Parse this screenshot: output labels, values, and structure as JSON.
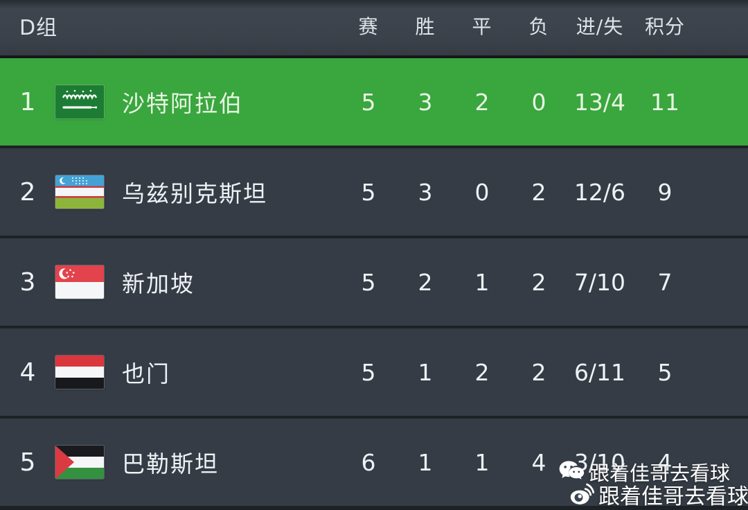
{
  "standings": {
    "group_label": "D组",
    "columns": [
      "赛",
      "胜",
      "平",
      "负",
      "进/失",
      "积分"
    ],
    "rows": [
      {
        "rank": "1",
        "team": "沙特阿拉伯",
        "flag": "saudi-arabia",
        "played": "5",
        "won": "3",
        "drawn": "2",
        "lost": "0",
        "goals_for_against": "13/4",
        "points": "11",
        "highlighted": true
      },
      {
        "rank": "2",
        "team": "乌兹别克斯坦",
        "flag": "uzbekistan",
        "played": "5",
        "won": "3",
        "drawn": "0",
        "lost": "2",
        "goals_for_against": "12/6",
        "points": "9",
        "highlighted": false
      },
      {
        "rank": "3",
        "team": "新加坡",
        "flag": "singapore",
        "played": "5",
        "won": "2",
        "drawn": "1",
        "lost": "2",
        "goals_for_against": "7/10",
        "points": "7",
        "highlighted": false
      },
      {
        "rank": "4",
        "team": "也门",
        "flag": "yemen",
        "played": "5",
        "won": "1",
        "drawn": "2",
        "lost": "2",
        "goals_for_against": "6/11",
        "points": "5",
        "highlighted": false
      },
      {
        "rank": "5",
        "team": "巴勒斯坦",
        "flag": "palestine",
        "played": "6",
        "won": "1",
        "drawn": "1",
        "lost": "4",
        "goals_for_against": "3/10",
        "points": "4",
        "highlighted": false
      }
    ]
  },
  "watermark": {
    "line1": {
      "icon": "wechat-icon",
      "text": "跟着佳哥去看球"
    },
    "line2": {
      "icon": "weibo-icon",
      "text": "跟着佳哥去看球"
    }
  },
  "colors": {
    "highlight_green": "#3aa63e",
    "header_bg": "#3b424b",
    "row_bg": "#353c45",
    "separator": "#1d2227",
    "text": "#eef2f6"
  }
}
